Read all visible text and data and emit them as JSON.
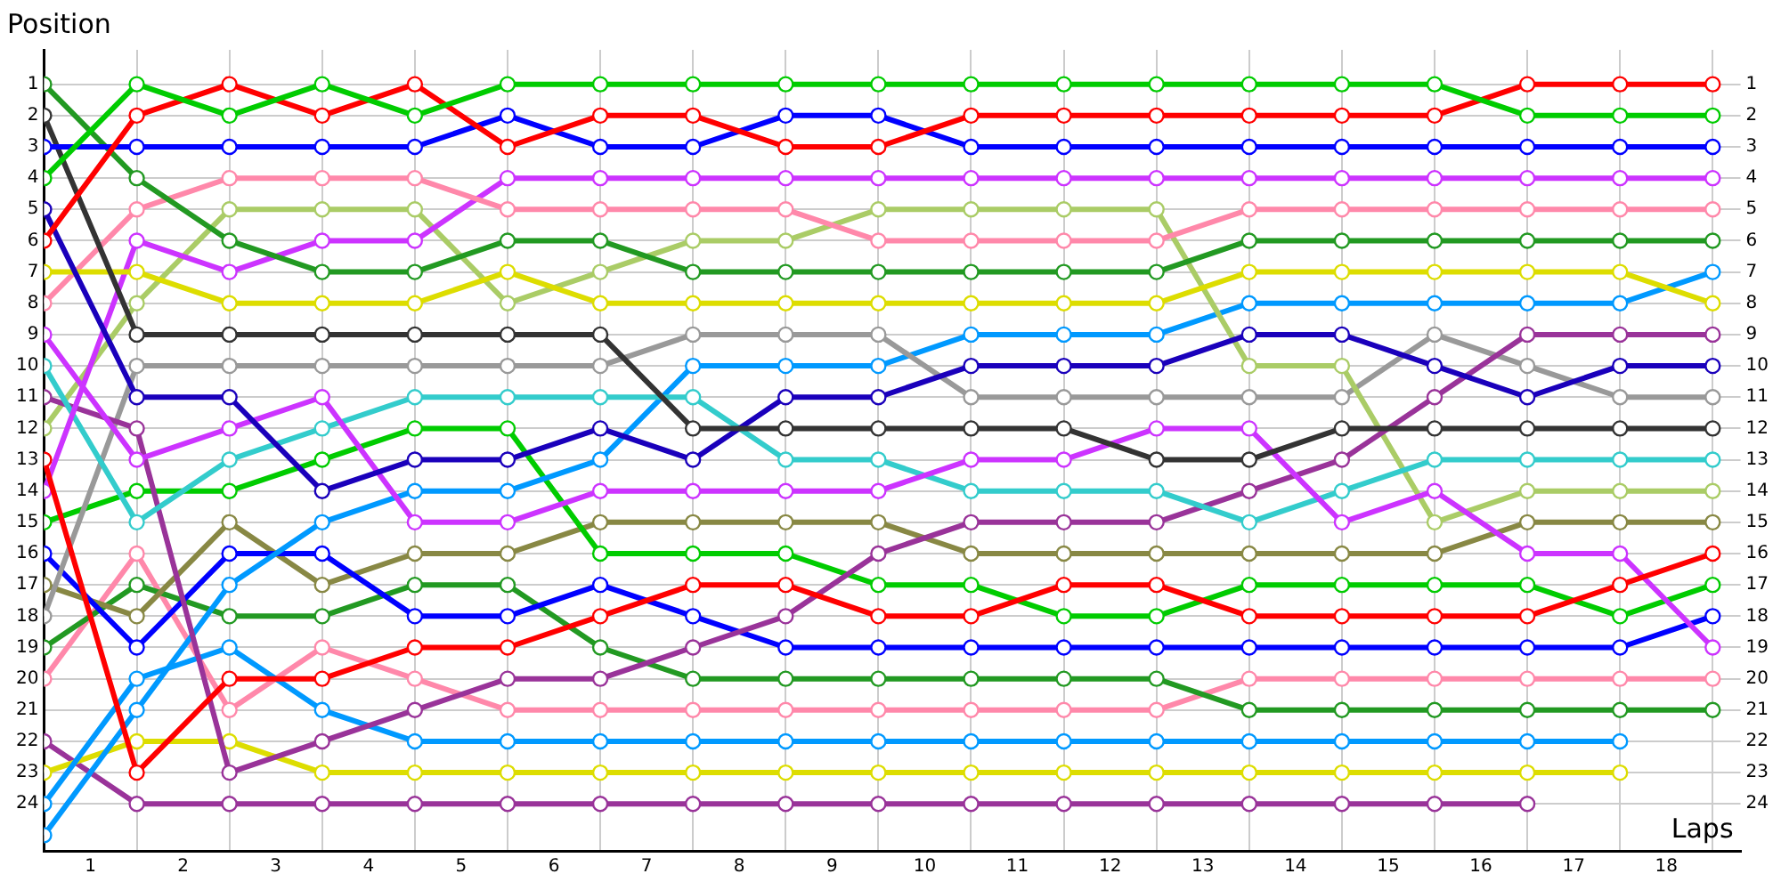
{
  "chart_data": {
    "type": "line",
    "xlabel": "Laps",
    "ylabel": "Position",
    "marker": "circle",
    "grid": true,
    "legend": false,
    "x": [
      0,
      1,
      2,
      3,
      4,
      5,
      6,
      7,
      8,
      9,
      10,
      11,
      12,
      13,
      14,
      15,
      16,
      17,
      18
    ],
    "xlim": [
      0,
      18.3
    ],
    "xticks": [
      {
        "value": 0,
        "label": null
      },
      {
        "value": 0.5,
        "label": "1"
      },
      {
        "value": 1,
        "label": null
      },
      {
        "value": 1.5,
        "label": "2"
      },
      {
        "value": 2,
        "label": null
      },
      {
        "value": 2.5,
        "label": "3"
      },
      {
        "value": 3,
        "label": null
      },
      {
        "value": 3.5,
        "label": "4"
      },
      {
        "value": 4,
        "label": null
      },
      {
        "value": 4.5,
        "label": "5"
      },
      {
        "value": 5,
        "label": null
      },
      {
        "value": 5.5,
        "label": "6"
      },
      {
        "value": 6,
        "label": null
      },
      {
        "value": 6.5,
        "label": "7"
      },
      {
        "value": 7,
        "label": null
      },
      {
        "value": 7.5,
        "label": "8"
      },
      {
        "value": 8,
        "label": null
      },
      {
        "value": 8.5,
        "label": "9"
      },
      {
        "value": 9,
        "label": null
      },
      {
        "value": 9.5,
        "label": "10"
      },
      {
        "value": 10,
        "label": null
      },
      {
        "value": 10.5,
        "label": "11"
      },
      {
        "value": 11,
        "label": null
      },
      {
        "value": 11.5,
        "label": "12"
      },
      {
        "value": 12,
        "label": null
      },
      {
        "value": 12.5,
        "label": "13"
      },
      {
        "value": 13,
        "label": null
      },
      {
        "value": 13.5,
        "label": "14"
      },
      {
        "value": 14,
        "label": null
      },
      {
        "value": 14.5,
        "label": "15"
      },
      {
        "value": 15,
        "label": null
      },
      {
        "value": 15.5,
        "label": "16"
      },
      {
        "value": 16,
        "label": null
      },
      {
        "value": 16.5,
        "label": "17"
      },
      {
        "value": 17,
        "label": null
      },
      {
        "value": 17.5,
        "label": "18"
      },
      {
        "value": 18,
        "label": null
      }
    ],
    "ylim": [
      25.5,
      -0.1
    ],
    "yticks": [
      1,
      2,
      3,
      4,
      5,
      6,
      7,
      8,
      9,
      10,
      11,
      12,
      13,
      14,
      15,
      16,
      17,
      18,
      19,
      20,
      21,
      22,
      23,
      24
    ],
    "y2lim": [
      25.5,
      -0.1
    ],
    "y2ticks": [
      1,
      2,
      3,
      4,
      5,
      6,
      7,
      8,
      9,
      10,
      11,
      12,
      13,
      14,
      15,
      16,
      17,
      18,
      19,
      20,
      21,
      22,
      23,
      24
    ],
    "series": [
      {
        "color": "#00cc00",
        "values": [
          4,
          1,
          2,
          1,
          2,
          1,
          1,
          1,
          1,
          1,
          1,
          1,
          1,
          1,
          1,
          1,
          2,
          2,
          2
        ]
      },
      {
        "color": "#ff0000",
        "values": [
          6,
          2,
          1,
          2,
          1,
          3,
          2,
          2,
          3,
          3,
          2,
          2,
          2,
          2,
          2,
          2,
          1,
          1,
          1
        ]
      },
      {
        "color": "#0000ff",
        "values": [
          3,
          3,
          3,
          3,
          3,
          2,
          3,
          3,
          2,
          2,
          3,
          3,
          3,
          3,
          3,
          3,
          3,
          3,
          3
        ]
      },
      {
        "color": "#229922",
        "values": [
          1,
          4,
          6,
          7,
          7,
          6,
          6,
          7,
          7,
          7,
          7,
          7,
          7,
          6,
          6,
          6,
          6,
          6,
          6
        ]
      },
      {
        "color": "#333333",
        "values": [
          2,
          9,
          9,
          9,
          9,
          9,
          9,
          12,
          12,
          12,
          12,
          12,
          13,
          13,
          12,
          12,
          12,
          12,
          12
        ]
      },
      {
        "color": "#1a00bb",
        "values": [
          5,
          11,
          11,
          14,
          13,
          13,
          12,
          13,
          11,
          11,
          10,
          10,
          10,
          9,
          9,
          10,
          11,
          10,
          10
        ]
      },
      {
        "color": "#ff0000",
        "values": [
          13,
          23,
          20,
          20,
          19,
          19,
          18,
          17,
          17,
          18,
          18,
          17,
          17,
          18,
          18,
          18,
          18,
          17,
          16
        ]
      },
      {
        "color": "#dddd00",
        "values": [
          7,
          7,
          8,
          8,
          8,
          7,
          8,
          8,
          8,
          8,
          8,
          8,
          8,
          7,
          7,
          7,
          7,
          7,
          8
        ]
      },
      {
        "color": "#ff88aa",
        "values": [
          8,
          5,
          4,
          4,
          4,
          5,
          5,
          5,
          5,
          6,
          6,
          6,
          6,
          5,
          5,
          5,
          5,
          5,
          5
        ]
      },
      {
        "color": "#cc33ff",
        "values": [
          9,
          13,
          12,
          11,
          15,
          15,
          14,
          14,
          14,
          14,
          13,
          13,
          12,
          12,
          15,
          14,
          16,
          16,
          19
        ]
      },
      {
        "color": "#cc33ff",
        "values": [
          14,
          6,
          7,
          6,
          6,
          4,
          4,
          4,
          4,
          4,
          4,
          4,
          4,
          4,
          4,
          4,
          4,
          4,
          4
        ]
      },
      {
        "color": "#33cccc",
        "values": [
          10,
          15,
          13,
          12,
          11,
          11,
          11,
          11,
          13,
          13,
          14,
          14,
          14,
          15,
          14,
          13,
          13,
          13,
          13
        ]
      },
      {
        "color": "#993399",
        "values": [
          11,
          12,
          23,
          22,
          21,
          20,
          20,
          19,
          18,
          16,
          15,
          15,
          15,
          14,
          13,
          11,
          9,
          9,
          9
        ]
      },
      {
        "color": "#aacc66",
        "values": [
          12,
          8,
          5,
          5,
          5,
          8,
          7,
          6,
          6,
          5,
          5,
          5,
          5,
          10,
          10,
          15,
          14,
          14,
          14
        ]
      },
      {
        "color": "#999999",
        "values": [
          18,
          10,
          10,
          10,
          10,
          10,
          10,
          9,
          9,
          9,
          11,
          11,
          11,
          11,
          11,
          9,
          10,
          11,
          11
        ]
      },
      {
        "color": "#0099ff",
        "values": [
          24,
          20,
          19,
          21,
          22,
          22,
          22,
          22,
          22,
          22,
          22,
          22,
          22,
          22,
          22,
          22,
          22,
          22,
          null
        ]
      },
      {
        "color": "#0099ff",
        "values": [
          25,
          21,
          17,
          15,
          14,
          14,
          13,
          10,
          10,
          10,
          9,
          9,
          9,
          8,
          8,
          8,
          8,
          8,
          7
        ]
      },
      {
        "color": "#00cc00",
        "values": [
          15,
          14,
          14,
          13,
          12,
          12,
          16,
          16,
          16,
          17,
          17,
          18,
          18,
          17,
          17,
          17,
          17,
          18,
          17
        ]
      },
      {
        "color": "#0000ff",
        "values": [
          16,
          19,
          16,
          16,
          18,
          18,
          17,
          18,
          19,
          19,
          19,
          19,
          19,
          19,
          19,
          19,
          19,
          19,
          18
        ]
      },
      {
        "color": "#888844",
        "values": [
          17,
          18,
          15,
          17,
          16,
          16,
          15,
          15,
          15,
          15,
          16,
          16,
          16,
          16,
          16,
          16,
          15,
          15,
          15
        ]
      },
      {
        "color": "#229922",
        "values": [
          19,
          17,
          18,
          18,
          17,
          17,
          19,
          20,
          20,
          20,
          20,
          20,
          20,
          21,
          21,
          21,
          21,
          21,
          21
        ]
      },
      {
        "color": "#ff88aa",
        "values": [
          20,
          16,
          21,
          19,
          20,
          21,
          21,
          21,
          21,
          21,
          21,
          21,
          21,
          20,
          20,
          20,
          20,
          20,
          20
        ]
      },
      {
        "color": "#dddd00",
        "values": [
          23,
          22,
          22,
          23,
          23,
          23,
          23,
          23,
          23,
          23,
          23,
          23,
          23,
          23,
          23,
          23,
          23,
          23,
          null
        ]
      },
      {
        "color": "#993399",
        "values": [
          22,
          24,
          24,
          24,
          24,
          24,
          24,
          24,
          24,
          24,
          24,
          24,
          24,
          24,
          24,
          24,
          24,
          null,
          null
        ]
      }
    ]
  }
}
